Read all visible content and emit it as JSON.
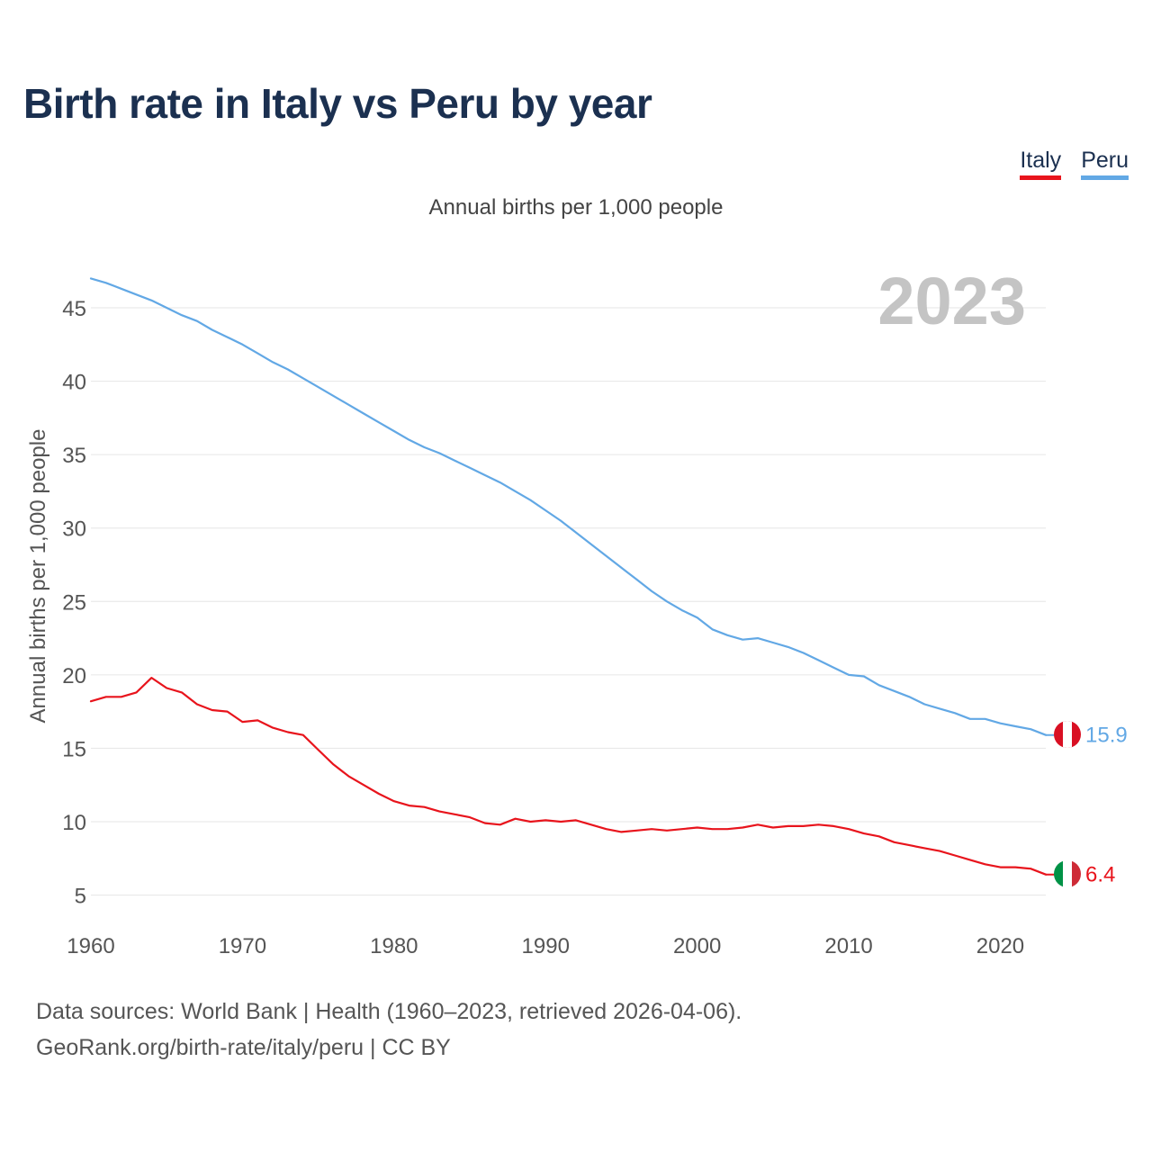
{
  "title": "Birth rate in Italy vs Peru by year",
  "legend": {
    "italy": "Italy",
    "peru": "Peru"
  },
  "subtitle": "Annual births per 1,000 people",
  "year_overlay": "2023",
  "source": {
    "line1": "Data sources: World Bank | Health (1960–2023, retrieved 2026-04-06).",
    "line2": "GeoRank.org/birth-rate/italy/peru | CC BY"
  },
  "colors": {
    "italy": "#e8141c",
    "peru": "#62a8e5",
    "grid": "#e6e6e6",
    "axis_text": "#555555",
    "year_overlay": "#c4c4c4"
  },
  "chart_data": {
    "type": "line",
    "title": "Birth rate in Italy vs Peru by year",
    "xlabel": "",
    "ylabel": "Annual births per 1,000 people",
    "xlim": [
      1960,
      2023
    ],
    "ylim": [
      2.5,
      47
    ],
    "x_ticks": [
      1960,
      1970,
      1980,
      1990,
      2000,
      2010,
      2020
    ],
    "y_ticks": [
      5,
      10,
      15,
      20,
      25,
      30,
      35,
      40,
      45
    ],
    "x": [
      1960,
      1961,
      1962,
      1963,
      1964,
      1965,
      1966,
      1967,
      1968,
      1969,
      1970,
      1971,
      1972,
      1973,
      1974,
      1975,
      1976,
      1977,
      1978,
      1979,
      1980,
      1981,
      1982,
      1983,
      1984,
      1985,
      1986,
      1987,
      1988,
      1989,
      1990,
      1991,
      1992,
      1993,
      1994,
      1995,
      1996,
      1997,
      1998,
      1999,
      2000,
      2001,
      2002,
      2003,
      2004,
      2005,
      2006,
      2007,
      2008,
      2009,
      2010,
      2011,
      2012,
      2013,
      2014,
      2015,
      2016,
      2017,
      2018,
      2019,
      2020,
      2021,
      2022,
      2023
    ],
    "series": [
      {
        "name": "Peru",
        "color": "#62a8e5",
        "end_label": "15.9",
        "values": [
          47.0,
          46.7,
          46.3,
          45.9,
          45.5,
          45.0,
          44.5,
          44.1,
          43.5,
          43.0,
          42.5,
          41.9,
          41.3,
          40.8,
          40.2,
          39.6,
          39.0,
          38.4,
          37.8,
          37.2,
          36.6,
          36.0,
          35.5,
          35.1,
          34.6,
          34.1,
          33.6,
          33.1,
          32.5,
          31.9,
          31.2,
          30.5,
          29.7,
          28.9,
          28.1,
          27.3,
          26.5,
          25.7,
          25.0,
          24.4,
          23.9,
          23.1,
          22.7,
          22.4,
          22.5,
          22.2,
          21.9,
          21.5,
          21.0,
          20.5,
          20.0,
          19.9,
          19.3,
          18.9,
          18.5,
          18.0,
          17.7,
          17.4,
          17.0,
          17.0,
          16.7,
          16.5,
          16.3,
          15.9
        ]
      },
      {
        "name": "Italy",
        "color": "#e8141c",
        "end_label": "6.4",
        "values": [
          18.2,
          18.5,
          18.5,
          18.8,
          19.8,
          19.1,
          18.8,
          18.0,
          17.6,
          17.5,
          16.8,
          16.9,
          16.4,
          16.1,
          15.9,
          14.9,
          13.9,
          13.1,
          12.5,
          11.9,
          11.4,
          11.1,
          11.0,
          10.7,
          10.5,
          10.3,
          9.9,
          9.8,
          10.2,
          10.0,
          10.1,
          10.0,
          10.1,
          9.8,
          9.5,
          9.3,
          9.4,
          9.5,
          9.4,
          9.5,
          9.6,
          9.5,
          9.5,
          9.6,
          9.8,
          9.6,
          9.7,
          9.7,
          9.8,
          9.7,
          9.5,
          9.2,
          9.0,
          8.6,
          8.4,
          8.2,
          8.0,
          7.7,
          7.4,
          7.1,
          6.9,
          6.9,
          6.8,
          6.4
        ]
      }
    ]
  }
}
